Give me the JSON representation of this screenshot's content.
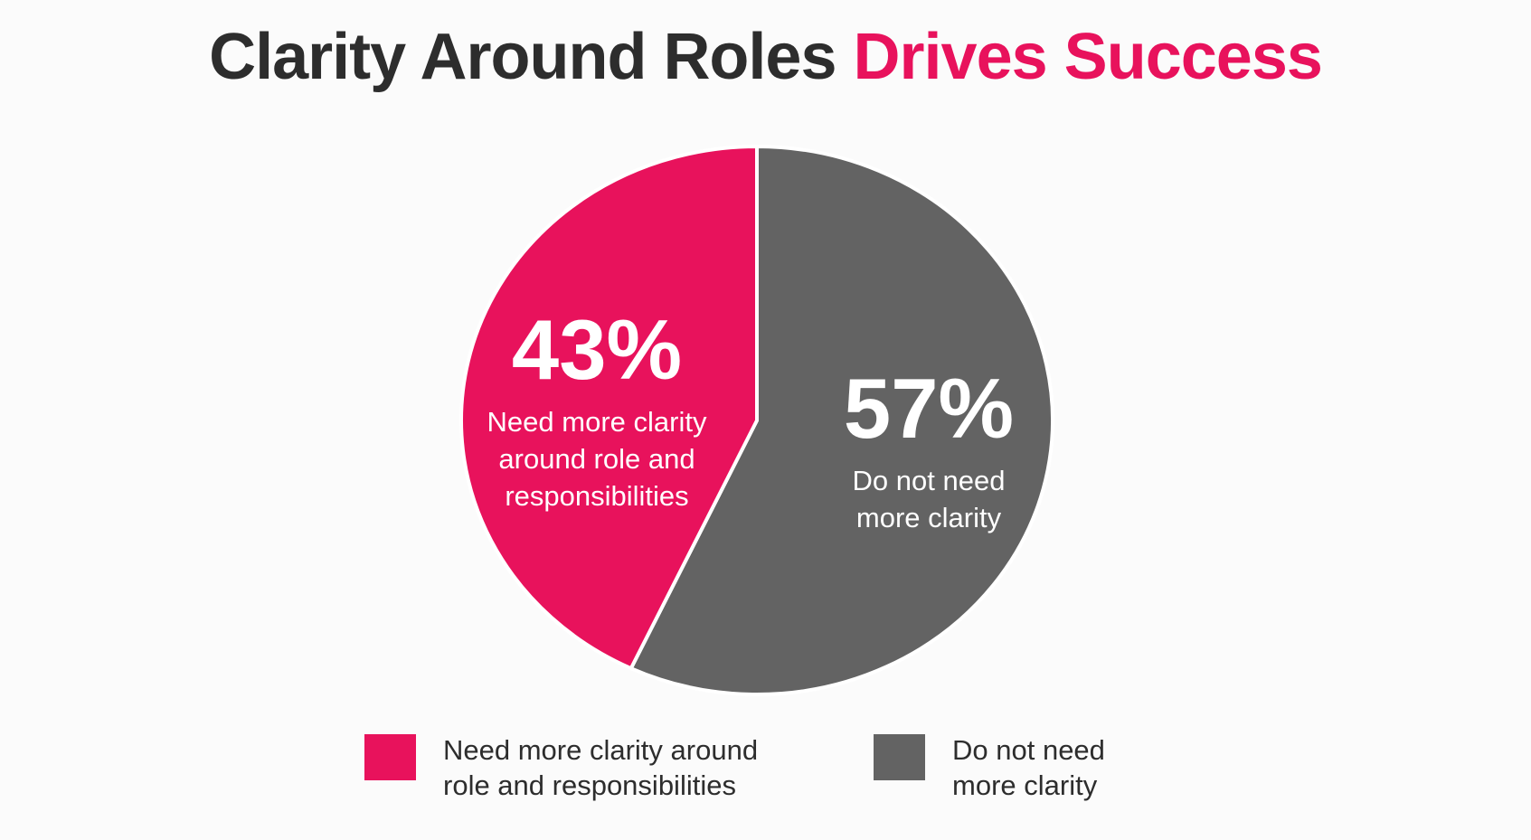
{
  "title": {
    "main": "Clarity Around Roles",
    "accent": "Drives Success"
  },
  "colors": {
    "accent": "#e8125c",
    "gray": "#636363",
    "text": "#2d2d2d",
    "background": "#fbfbfb"
  },
  "chart_data": {
    "type": "pie",
    "title": "Clarity Around Roles Drives Success",
    "legend_position": "bottom",
    "slices": [
      {
        "label": "Need more clarity around role and responsibilities",
        "value": 43,
        "value_label": "43%",
        "slice_text": "Need more clarity\naround role and\nresponsibilities",
        "legend_text": "Need more clarity around\nrole and responsibilities",
        "color": "#e8125c"
      },
      {
        "label": "Do not need more clarity",
        "value": 57,
        "value_label": "57%",
        "slice_text": "Do not need\nmore clarity",
        "legend_text": "Do not need\nmore clarity",
        "color": "#636363"
      }
    ]
  }
}
